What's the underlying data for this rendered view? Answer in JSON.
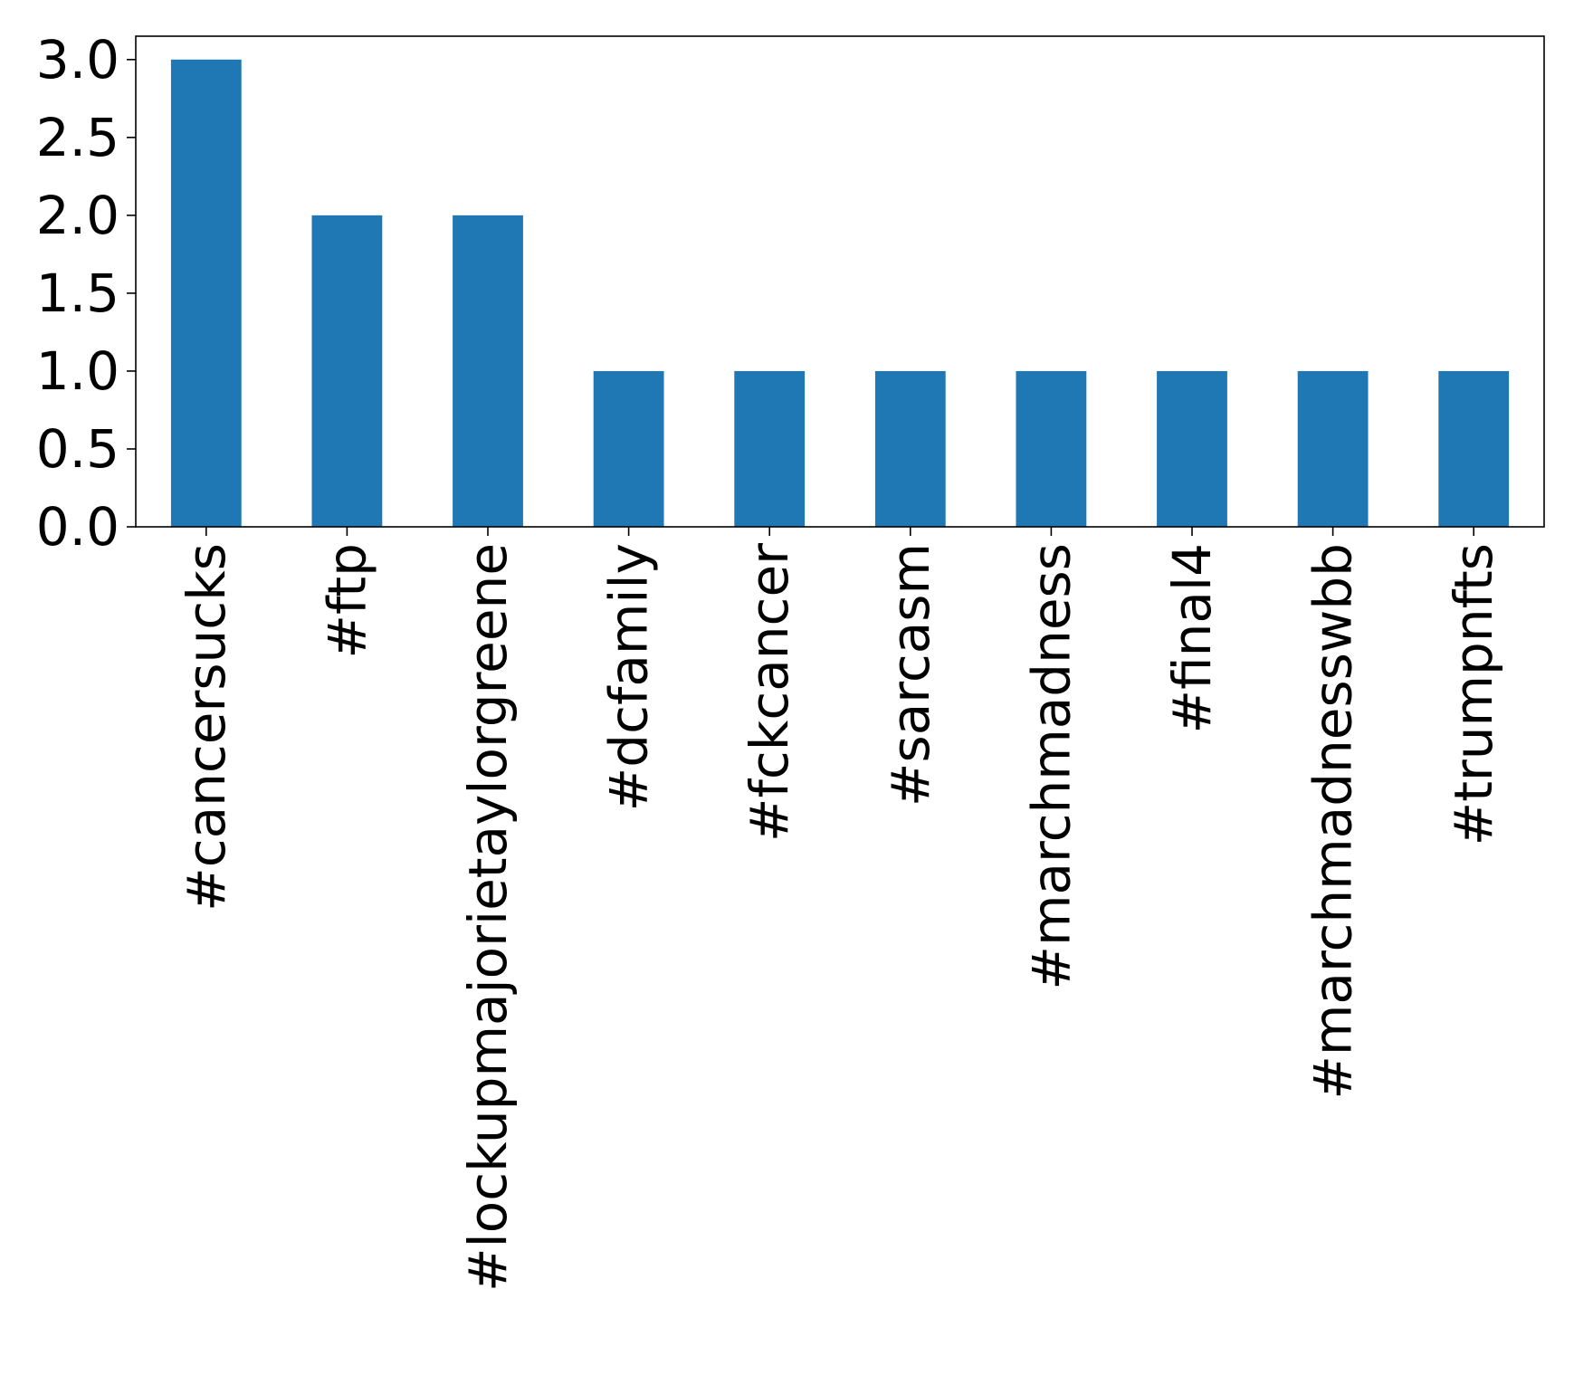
{
  "chart_data": {
    "type": "bar",
    "title": "",
    "xlabel": "",
    "ylabel": "",
    "categories": [
      "#cancersucks",
      "#ftp",
      "#lockupmajorietaylorgreene",
      "#dcfamily",
      "#fckcancer",
      "#sarcasm",
      "#marchmadness",
      "#final4",
      "#marchmadnesswbb",
      "#trumpnfts"
    ],
    "values": [
      3,
      2,
      2,
      1,
      1,
      1,
      1,
      1,
      1,
      1
    ],
    "ylim": [
      0,
      3.15
    ],
    "yticks": [
      "0.0",
      "0.5",
      "1.0",
      "1.5",
      "2.0",
      "2.5",
      "3.0"
    ],
    "grid": false,
    "legend": "none",
    "bar_color": "#1f77b4"
  }
}
